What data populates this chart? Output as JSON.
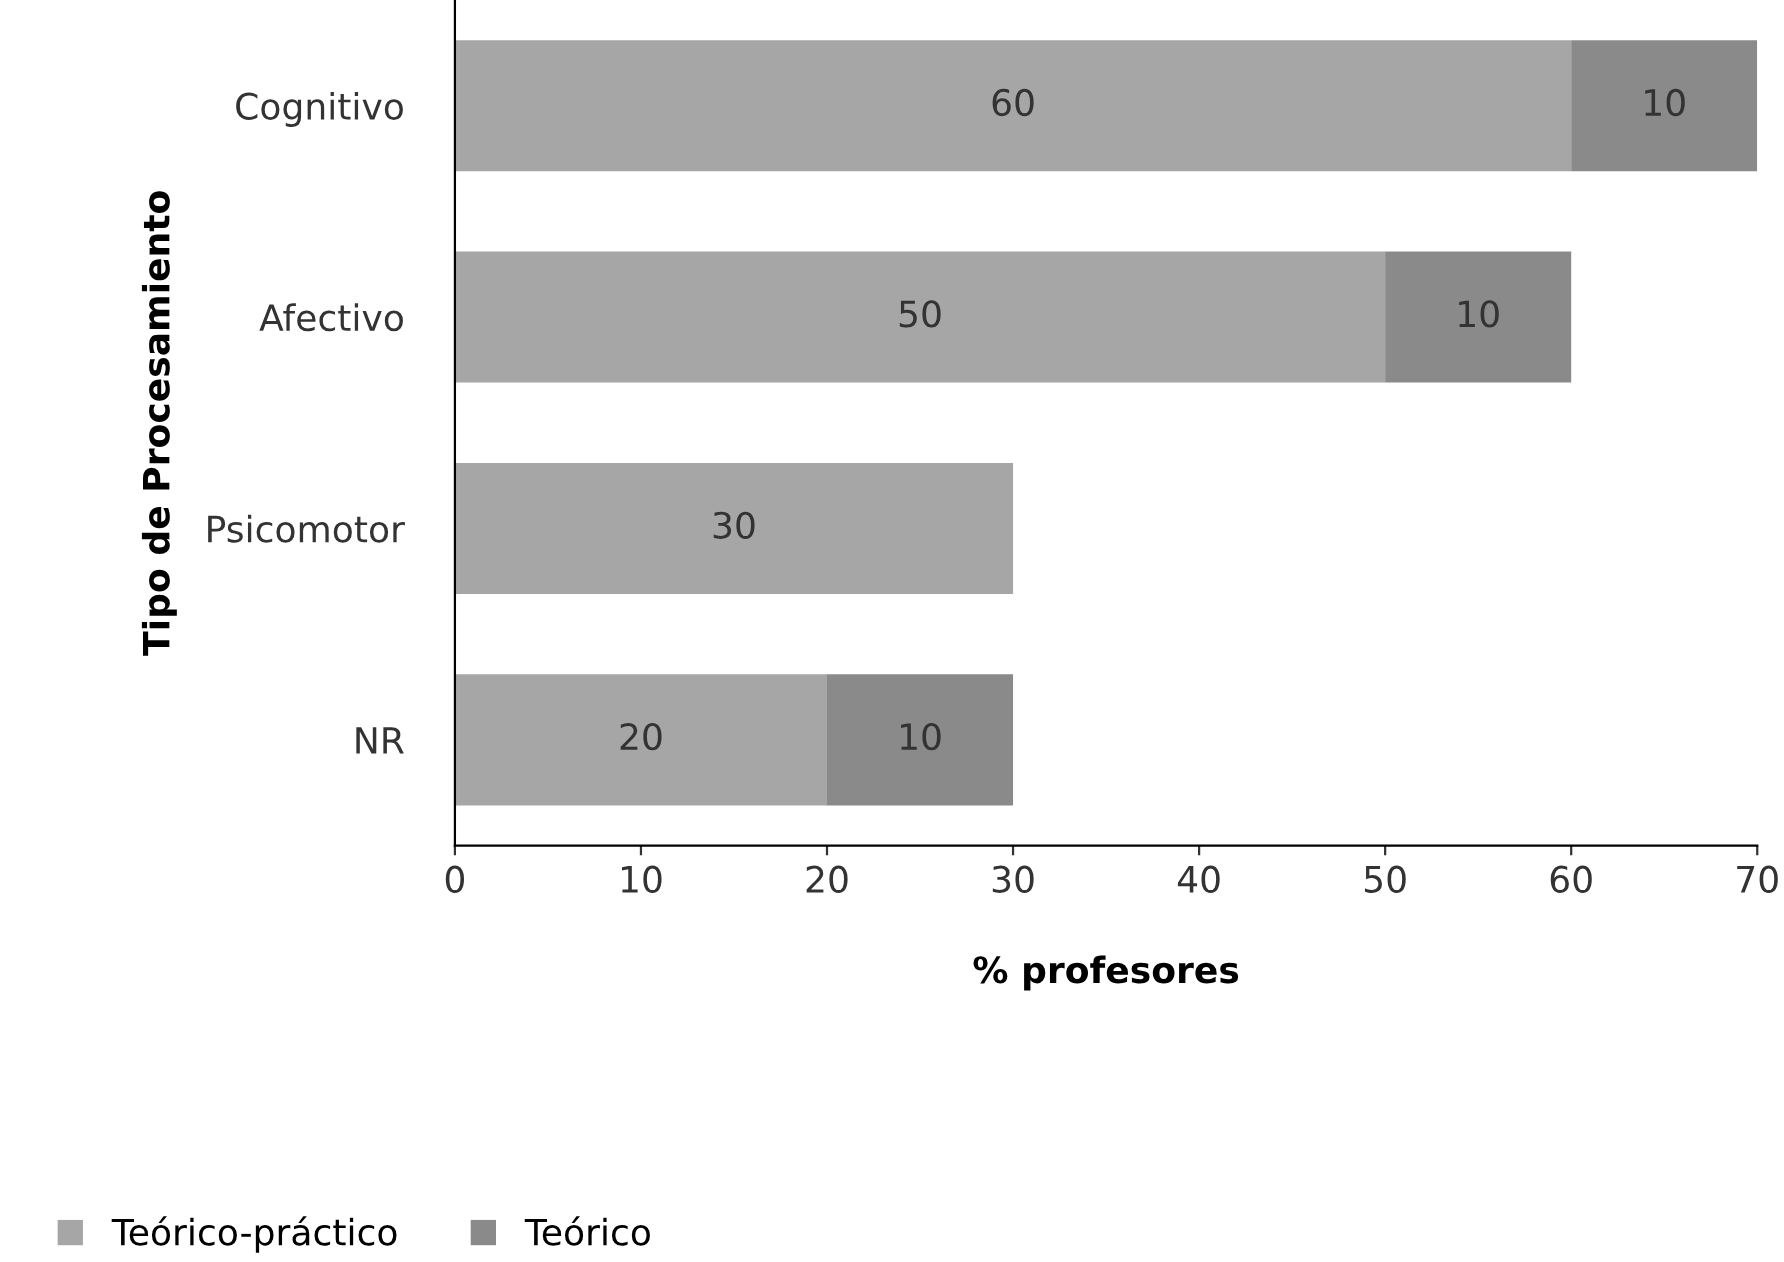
{
  "chart_data": {
    "type": "bar",
    "orientation": "horizontal",
    "stacked": true,
    "categories": [
      "Cognitivo",
      "Afectivo",
      "Psicomotor",
      "NR"
    ],
    "series": [
      {
        "name": "Teórico-práctico",
        "color": "#a6a6a6",
        "values": [
          60,
          50,
          30,
          20
        ]
      },
      {
        "name": "Teórico",
        "color": "#8a8a8a",
        "values": [
          10,
          10,
          null,
          10
        ]
      }
    ],
    "xlim": [
      0,
      70
    ],
    "xticks": [
      0,
      10,
      20,
      30,
      40,
      50,
      60,
      70
    ],
    "xlabel": "% profesores",
    "ylabel": "Tipo de Procesamiento",
    "data_labels": true,
    "legend": "bottom left",
    "grid": false
  }
}
